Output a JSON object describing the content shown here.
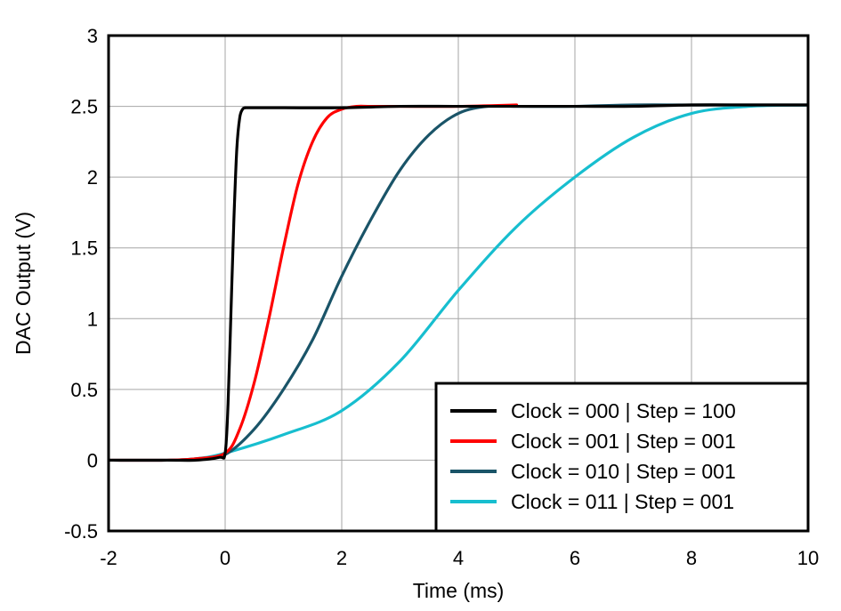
{
  "chart_data": {
    "type": "line",
    "title": "",
    "xlabel": "Time (ms)",
    "ylabel": "DAC Output (V)",
    "xlim": [
      -2,
      10
    ],
    "ylim": [
      -0.5,
      3
    ],
    "xticks": [
      -2,
      0,
      2,
      4,
      6,
      8,
      10
    ],
    "xtick_labels": [
      "-2",
      "0",
      "2",
      "4",
      "6",
      "8",
      "10"
    ],
    "yticks": [
      -0.5,
      0,
      0.5,
      1,
      1.5,
      2,
      2.5,
      3
    ],
    "ytick_labels": [
      "-0.5",
      "0",
      "0.5",
      "1",
      "1.5",
      "2",
      "2.5",
      "3"
    ],
    "grid": true,
    "legend_position": "bottom-right",
    "series": [
      {
        "name": "Clock = 000 | Step = 100",
        "color": "#000000",
        "x": [
          -2,
          -1,
          -0.5,
          -0.1,
          0,
          0.05,
          0.1,
          0.15,
          0.2,
          0.25,
          0.3,
          0.35,
          0.4,
          1,
          2,
          3,
          4,
          5,
          6,
          7,
          8,
          9,
          10
        ],
        "y": [
          0,
          0,
          0,
          0.02,
          0.05,
          0.4,
          1.05,
          1.7,
          2.2,
          2.42,
          2.48,
          2.49,
          2.49,
          2.49,
          2.49,
          2.5,
          2.5,
          2.5,
          2.5,
          2.5,
          2.51,
          2.51,
          2.51
        ]
      },
      {
        "name": "Clock = 001 | Step = 001",
        "color": "#ff0000",
        "x": [
          -2,
          -1,
          -0.5,
          0,
          0.25,
          0.5,
          0.75,
          1.0,
          1.25,
          1.5,
          1.75,
          2.0,
          2.25,
          2.5,
          3,
          4,
          5
        ],
        "y": [
          0,
          0,
          0.01,
          0.05,
          0.22,
          0.55,
          1.0,
          1.5,
          1.95,
          2.25,
          2.42,
          2.48,
          2.5,
          2.5,
          2.5,
          2.5,
          2.51
        ]
      },
      {
        "name": "Clock = 010 | Step = 001",
        "color": "#1a5468",
        "x": [
          -2,
          -1,
          -0.5,
          0,
          0.5,
          1.0,
          1.5,
          2.0,
          2.5,
          3.0,
          3.5,
          4.0,
          4.5,
          5,
          6,
          7,
          8,
          9,
          10
        ],
        "y": [
          0,
          0,
          0.01,
          0.04,
          0.22,
          0.5,
          0.85,
          1.3,
          1.7,
          2.05,
          2.3,
          2.45,
          2.5,
          2.5,
          2.5,
          2.51,
          2.51,
          2.51,
          2.51
        ]
      },
      {
        "name": "Clock = 011 | Step = 001",
        "color": "#17becf",
        "x": [
          -2,
          -1,
          -0.5,
          0,
          1,
          2,
          3,
          4,
          5,
          6,
          7,
          8,
          9,
          10
        ],
        "y": [
          0,
          0,
          0.01,
          0.05,
          0.18,
          0.35,
          0.7,
          1.2,
          1.65,
          2.0,
          2.28,
          2.45,
          2.5,
          2.51
        ]
      }
    ]
  }
}
